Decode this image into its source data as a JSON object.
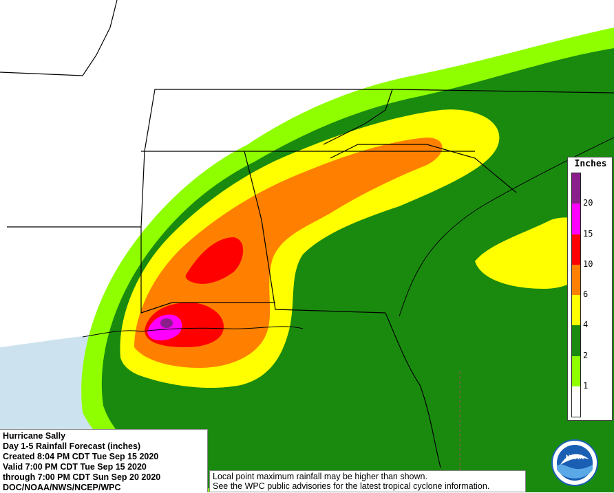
{
  "colors": {
    "land": "#ffffff",
    "water": "#cde2ef",
    "border": "#000000",
    "c1": "#8fff00",
    "c2": "#1a8a0f",
    "c4": "#ffff00",
    "c6": "#ff8000",
    "c10": "#ff0000",
    "c15": "#ff00ff",
    "c20": "#8a1e8a"
  },
  "legend": {
    "title": "Inches",
    "levels": [
      {
        "label": "20",
        "color": "#8a1e8a"
      },
      {
        "label": "15",
        "color": "#ff00ff"
      },
      {
        "label": "10",
        "color": "#ff0000"
      },
      {
        "label": "6",
        "color": "#ff8000"
      },
      {
        "label": "4",
        "color": "#ffff00"
      },
      {
        "label": "2",
        "color": "#1a8a0f"
      },
      {
        "label": "1",
        "color": "#8fff00"
      }
    ],
    "bottom_color": "#ffffff"
  },
  "info": {
    "lines": [
      "Hurricane Sally",
      "Day 1-5 Rainfall Forecast (inches)",
      "Created 8:04 PM CDT Tue Sep 15 2020",
      "Valid 7:00 PM CDT Tue Sep 15 2020",
      "through 7:00 PM CDT Sun Sep 20 2020",
      "DOC/NOAA/NWS/NCEP/WPC"
    ]
  },
  "note": {
    "line1": "Local point maximum rainfall may be higher than shown.",
    "line2": "See the WPC public advisories for the latest tropical cyclone information."
  },
  "logo": {
    "text": "NOAA",
    "outer_color": "#ffffff",
    "sky_color": "#1a5fb4",
    "wave_color": "#5aa9e6"
  }
}
